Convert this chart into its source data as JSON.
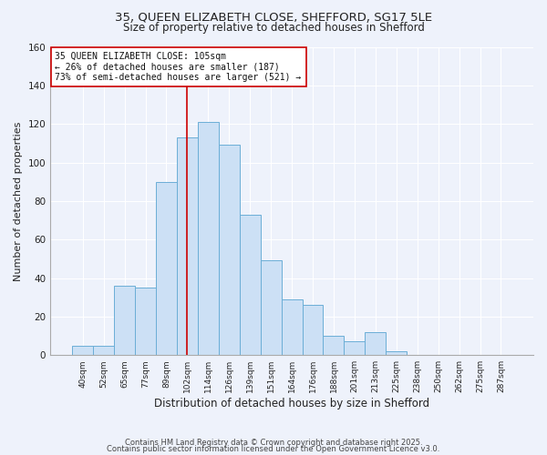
{
  "title_line1": "35, QUEEN ELIZABETH CLOSE, SHEFFORD, SG17 5LE",
  "title_line2": "Size of property relative to detached houses in Shefford",
  "xlabel": "Distribution of detached houses by size in Shefford",
  "ylabel": "Number of detached properties",
  "bin_labels": [
    "40sqm",
    "52sqm",
    "65sqm",
    "77sqm",
    "89sqm",
    "102sqm",
    "114sqm",
    "126sqm",
    "139sqm",
    "151sqm",
    "164sqm",
    "176sqm",
    "188sqm",
    "201sqm",
    "213sqm",
    "225sqm",
    "238sqm",
    "250sqm",
    "262sqm",
    "275sqm",
    "287sqm"
  ],
  "bar_heights": [
    5,
    5,
    36,
    35,
    90,
    113,
    121,
    109,
    73,
    49,
    29,
    26,
    10,
    7,
    12,
    2,
    0,
    0,
    0,
    0,
    0
  ],
  "bar_color": "#cce0f5",
  "bar_edge_color": "#6baed6",
  "ylim": [
    0,
    160
  ],
  "yticks": [
    0,
    20,
    40,
    60,
    80,
    100,
    120,
    140,
    160
  ],
  "annotation_line1": "35 QUEEN ELIZABETH CLOSE: 105sqm",
  "annotation_line2": "← 26% of detached houses are smaller (187)",
  "annotation_line3": "73% of semi-detached houses are larger (521) →",
  "footer_line1": "Contains HM Land Registry data © Crown copyright and database right 2025.",
  "footer_line2": "Contains public sector information licensed under the Open Government Licence v3.0.",
  "bg_color": "#eef2fb",
  "grid_color": "#ffffff",
  "vline_color": "#cc0000",
  "vline_x_index": 5
}
